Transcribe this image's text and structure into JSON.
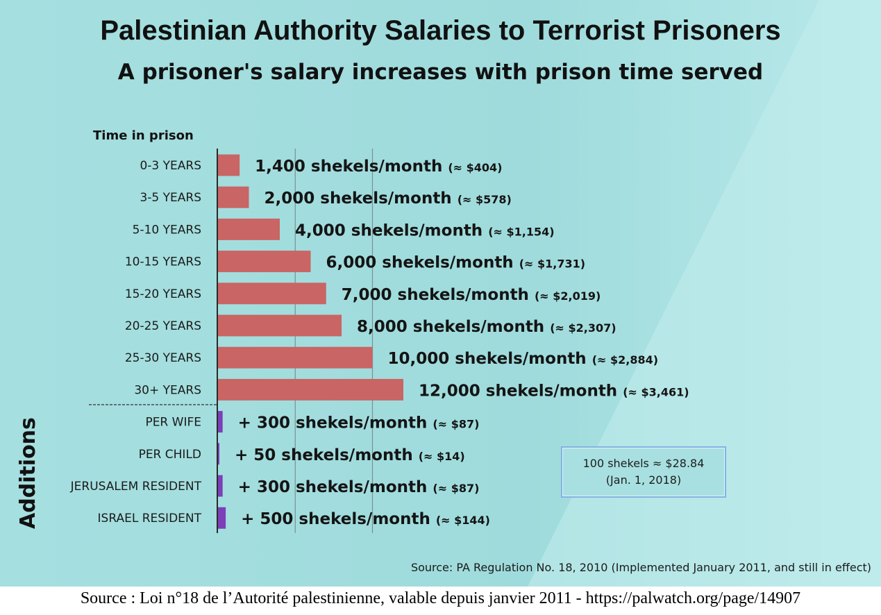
{
  "title": "Palestinian Authority Salaries to Terrorist Prisoners",
  "subtitle": "A prisoner's salary increases with prison time served",
  "chart_data": {
    "type": "bar",
    "orientation": "horizontal",
    "category_header": "Time in prison",
    "group_label": "Additions",
    "categories": [
      "0-3 YEARS",
      "3-5 YEARS",
      "5-10 YEARS",
      "10-15 YEARS",
      "15-20 YEARS",
      "20-25 YEARS",
      "25-30 YEARS",
      "30+ YEARS"
    ],
    "values": [
      1400,
      2000,
      4000,
      6000,
      7000,
      8000,
      10000,
      12000
    ],
    "value_labels": [
      "1,400 shekels/month",
      "2,000 shekels/month",
      "4,000 shekels/month",
      "6,000 shekels/month",
      "7,000 shekels/month",
      "8,000 shekels/month",
      "10,000 shekels/month",
      "12,000 shekels/month"
    ],
    "usd_labels": [
      "(≈ $404)",
      "(≈ $578)",
      "(≈ $1,154)",
      "(≈ $1,731)",
      "(≈ $2,019)",
      "(≈ $2,307)",
      "(≈ $2,884)",
      "(≈ $3,461)"
    ],
    "addition_categories": [
      "PER WIFE",
      "PER CHILD",
      "JERUSALEM RESIDENT",
      "ISRAEL RESIDENT"
    ],
    "addition_values": [
      300,
      50,
      300,
      500
    ],
    "addition_value_labels": [
      "+ 300 shekels/month",
      "+ 50 shekels/month",
      "+ 300 shekels/month",
      "+ 500 shekels/month"
    ],
    "addition_usd_labels": [
      "(≈ $87)",
      "(≈ $14)",
      "(≈ $87)",
      "(≈ $144)"
    ],
    "xlim": [
      0,
      15000
    ],
    "grid": true,
    "bar_color": "#c96564",
    "addition_bar_color": "#7b3fb8"
  },
  "note": {
    "line1": "100 shekels ≈ $28.84",
    "line2": "(Jan. 1, 2018)"
  },
  "source_en": "Source: PA Regulation No. 18, 2010 (Implemented January 2011, and still in effect)",
  "source_fr": "Source : Loi n°18 de l’Autorité palestinienne, valable depuis janvier 2011 - https://palwatch.org/page/14907"
}
